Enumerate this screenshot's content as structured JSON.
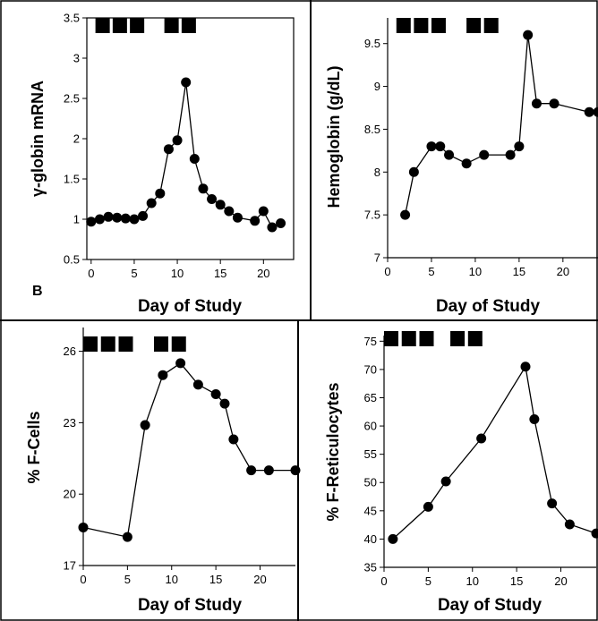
{
  "chart_data": [
    {
      "type": "line",
      "panel": "top-left",
      "panel_label": "B",
      "xlabel": "Day of Study",
      "ylabel": "γ-globin mRNA",
      "xlim": [
        -0.5,
        23.5
      ],
      "ylim": [
        0.5,
        3.5
      ],
      "xticks": [
        0,
        5,
        10,
        15,
        20
      ],
      "yticks": [
        0.5,
        1,
        1.5,
        2,
        2.5,
        3,
        3.5
      ],
      "ytick_labels": [
        "0.5",
        "1",
        "1.5",
        "2",
        "2.5",
        "3",
        "3.5"
      ],
      "dosing_blocks_days": [
        0.5,
        2.5,
        4.5,
        8.5,
        10.5
      ],
      "series": [
        {
          "x": [
            0,
            1,
            2,
            3,
            4,
            5,
            6,
            7,
            8,
            9,
            10,
            11,
            12,
            13,
            14,
            15,
            16,
            17,
            19,
            20,
            21,
            22
          ],
          "y": [
            0.97,
            1.0,
            1.03,
            1.02,
            1.01,
            1.0,
            1.04,
            1.2,
            1.32,
            1.87,
            1.98,
            2.7,
            1.75,
            1.38,
            1.25,
            1.18,
            1.1,
            1.02,
            0.98,
            1.1,
            0.9,
            0.95
          ]
        }
      ]
    },
    {
      "type": "line",
      "panel": "top-right",
      "xlabel": "Day of Study",
      "ylabel": "Hemoglobin (g/dL)",
      "xlim": [
        0,
        24
      ],
      "ylim": [
        7,
        9.8
      ],
      "xticks": [
        0,
        5,
        10,
        15,
        20
      ],
      "yticks": [
        7,
        7.5,
        8,
        8.5,
        9,
        9.5
      ],
      "ytick_labels": [
        "7",
        "7.5",
        "8",
        "8.5",
        "9",
        "9.5"
      ],
      "dosing_blocks_days": [
        1,
        3,
        5,
        9,
        11
      ],
      "series": [
        {
          "x": [
            2,
            3,
            5,
            6,
            7,
            9,
            11,
            14,
            15,
            16,
            17,
            19,
            23,
            24
          ],
          "y": [
            7.5,
            8.0,
            8.3,
            8.3,
            8.2,
            8.1,
            8.2,
            8.2,
            8.3,
            9.6,
            8.8,
            8.8,
            8.7,
            8.7
          ]
        }
      ]
    },
    {
      "type": "line",
      "panel": "bottom-left",
      "xlabel": "Day of Study",
      "ylabel": "% F-Cells",
      "xlim": [
        0,
        24
      ],
      "ylim": [
        17,
        27
      ],
      "xticks": [
        0,
        5,
        10,
        15,
        20
      ],
      "yticks": [
        17,
        20,
        23,
        26
      ],
      "ytick_labels": [
        "17",
        "20",
        "23",
        "26"
      ],
      "dosing_blocks_days": [
        0,
        2,
        4,
        8,
        10
      ],
      "series": [
        {
          "x": [
            0,
            5,
            7,
            9,
            11,
            13,
            15,
            16,
            17,
            19,
            21,
            24
          ],
          "y": [
            18.6,
            18.2,
            22.9,
            25.0,
            25.5,
            24.6,
            24.2,
            23.8,
            22.3,
            21.0,
            21.0,
            21.0
          ]
        }
      ]
    },
    {
      "type": "line",
      "panel": "bottom-right",
      "xlabel": "Day of Study",
      "ylabel": "% F-Reticulocytes",
      "xlim": [
        0,
        24
      ],
      "ylim": [
        35,
        76
      ],
      "xticks": [
        0,
        5,
        10,
        15,
        20
      ],
      "yticks": [
        35,
        40,
        45,
        50,
        55,
        60,
        65,
        70,
        75
      ],
      "ytick_labels": [
        "35",
        "40",
        "45",
        "50",
        "55",
        "60",
        "65",
        "70",
        "75"
      ],
      "dosing_blocks_days": [
        0,
        2,
        4,
        7.5,
        9.5
      ],
      "series": [
        {
          "x": [
            1,
            5,
            7,
            11,
            16,
            17,
            19,
            21,
            24
          ],
          "y": [
            40,
            45.7,
            50.2,
            57.8,
            70.5,
            61.2,
            46.3,
            42.6,
            41
          ]
        }
      ]
    }
  ]
}
